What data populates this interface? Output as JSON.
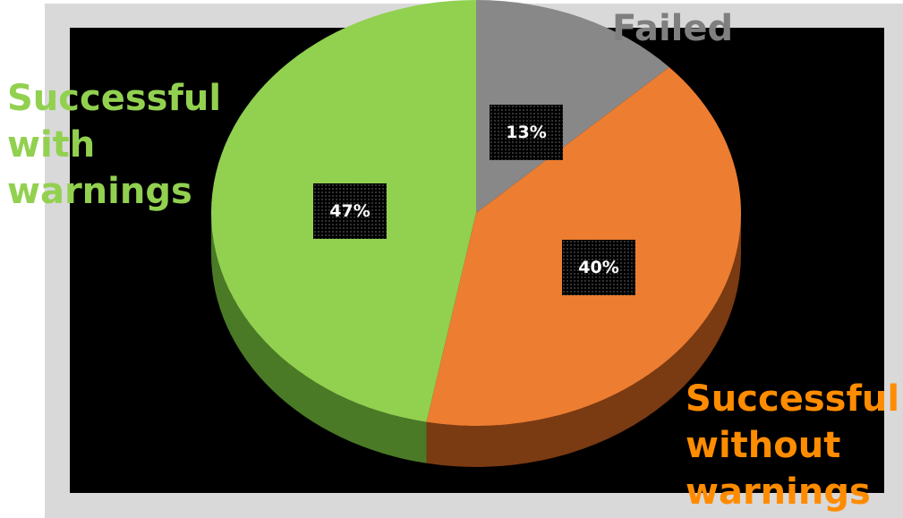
{
  "chart_data": {
    "type": "pie",
    "style": "3d",
    "slices": [
      {
        "name": "Failed",
        "value": 13,
        "label": "13%",
        "color": "#888888",
        "side_color": "#555555",
        "label_color": "#7f7f7f"
      },
      {
        "name": "Successful\nwithout\nwarnings",
        "value": 40,
        "label": "40%",
        "color": "#ED7D31",
        "side_color": "#7a3a12",
        "label_color": "#FF8C00"
      },
      {
        "name": "Successful\nwith\nwarnings",
        "value": 47,
        "label": "47%",
        "color": "#92D050",
        "side_color": "#4a7a26",
        "label_color": "#92D050"
      }
    ],
    "legend": "none",
    "background": "#000000",
    "frame_color": "#d9d9d9"
  }
}
